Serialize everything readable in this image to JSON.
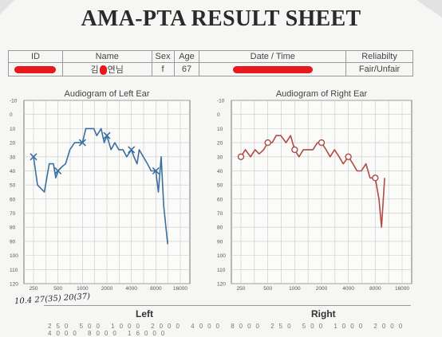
{
  "header": {
    "title": "AMA-PTA RESULT SHEET"
  },
  "info_table": {
    "headers": {
      "id": "ID",
      "name": "Name",
      "sex": "Sex",
      "age": "Age",
      "date": "Date / Time",
      "reliability": "Reliabilty"
    },
    "values": {
      "name_first": "김",
      "name_rest": "연님",
      "sex": "f",
      "age": "67",
      "reliability": "Fair/Unfair"
    }
  },
  "chart_data": [
    {
      "type": "line",
      "title": "Audiogram of Left Ear",
      "x_ticks": [
        "250",
        "500",
        "1000",
        "2000",
        "4000",
        "8000",
        "16000"
      ],
      "y_ticks": [
        "-10",
        "0",
        "10",
        "20",
        "30",
        "40",
        "50",
        "60",
        "70",
        "80",
        "90",
        "100",
        "110",
        "120"
      ],
      "ylim": [
        -10,
        120
      ],
      "y_inverted": true,
      "color": "#3a6fa0",
      "marker": "x",
      "series": [
        {
          "x": [
            250,
            280,
            340,
            390,
            440,
            470,
            500,
            560,
            620,
            700,
            800,
            900,
            1000,
            1100,
            1200,
            1380,
            1500,
            1700,
            1850,
            2000,
            2250,
            2500,
            2800,
            3150,
            3500,
            4000,
            4300,
            4700,
            5000,
            5600,
            6300,
            7000,
            8000,
            8600,
            9300,
            10000,
            11200
          ],
          "y": [
            30,
            50,
            55,
            35,
            35,
            45,
            40,
            37,
            35,
            25,
            20,
            20,
            20,
            10,
            10,
            10,
            15,
            10,
            20,
            15,
            25,
            20,
            25,
            25,
            30,
            25,
            30,
            35,
            25,
            30,
            35,
            40,
            40,
            55,
            30,
            65,
            92
          ]
        }
      ],
      "markers": {
        "x": [
          250,
          500,
          1000,
          2000,
          4000,
          8000
        ],
        "y": [
          30,
          40,
          20,
          15,
          25,
          40
        ]
      }
    },
    {
      "type": "line",
      "title": "Audiogram of Right Ear",
      "x_ticks": [
        "250",
        "500",
        "1000",
        "2000",
        "4000",
        "8000",
        "16000"
      ],
      "y_ticks": [
        "-10",
        "0",
        "10",
        "20",
        "30",
        "40",
        "50",
        "60",
        "70",
        "80",
        "90",
        "100",
        "110",
        "120"
      ],
      "ylim": [
        -10,
        120
      ],
      "y_inverted": true,
      "color": "#b04a45",
      "marker": "o",
      "series": [
        {
          "x": [
            250,
            280,
            320,
            360,
            400,
            450,
            500,
            560,
            620,
            700,
            800,
            900,
            1000,
            1120,
            1250,
            1400,
            1600,
            1800,
            2000,
            2250,
            2500,
            2800,
            3150,
            3500,
            4000,
            4500,
            5000,
            5600,
            6300,
            7000,
            8000,
            8800,
            9400,
            10200
          ],
          "y": [
            30,
            25,
            30,
            25,
            28,
            25,
            20,
            20,
            15,
            15,
            20,
            15,
            25,
            30,
            25,
            25,
            25,
            20,
            20,
            25,
            30,
            25,
            30,
            35,
            30,
            35,
            40,
            40,
            35,
            45,
            45,
            60,
            80,
            45
          ]
        }
      ],
      "markers": {
        "x": [
          250,
          500,
          1000,
          2000,
          4000,
          8000
        ],
        "y": [
          30,
          20,
          25,
          20,
          30,
          45
        ]
      }
    }
  ],
  "bottom": {
    "left_label": "Left",
    "right_label": "Right",
    "faint_row": "250 500 1000 2000 4000 8000 250 500 1000 2000 4000 8000 16000"
  },
  "handwriting": "10.4 27(35) 20(37)"
}
